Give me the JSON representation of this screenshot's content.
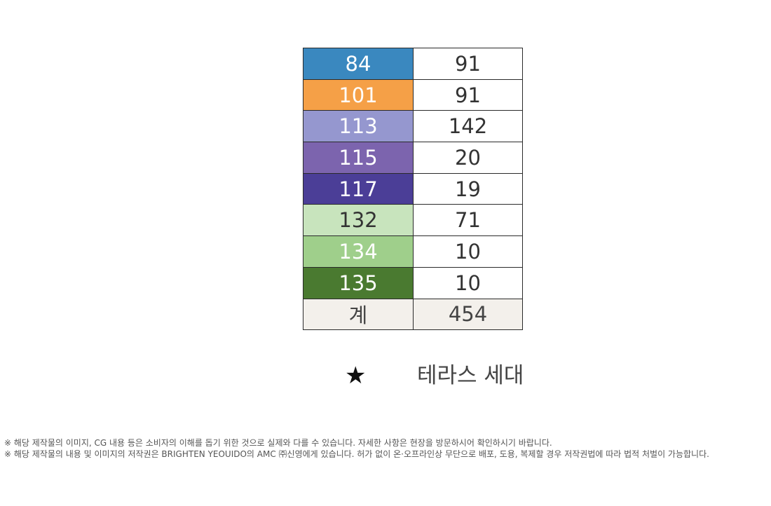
{
  "table": {
    "rows": [
      {
        "type": "84",
        "count": "91",
        "bg": "#3a88bf",
        "fg": "#ffffff"
      },
      {
        "type": "101",
        "count": "91",
        "bg": "#f5a047",
        "fg": "#ffffff"
      },
      {
        "type": "113",
        "count": "142",
        "bg": "#9597cf",
        "fg": "#ffffff"
      },
      {
        "type": "115",
        "count": "20",
        "bg": "#7c64ae",
        "fg": "#ffffff"
      },
      {
        "type": "117",
        "count": "19",
        "bg": "#4b3e97",
        "fg": "#ffffff"
      },
      {
        "type": "132",
        "count": "71",
        "bg": "#c8e4bd",
        "fg": "#333333"
      },
      {
        "type": "134",
        "count": "10",
        "bg": "#9fcf8b",
        "fg": "#ffffff"
      },
      {
        "type": "135",
        "count": "10",
        "bg": "#4a7a30",
        "fg": "#ffffff"
      }
    ],
    "total": {
      "label": "계",
      "value": "454"
    }
  },
  "legend": {
    "symbol": "★",
    "label": "테라스 세대"
  },
  "disclaimer": {
    "line1": "※ 해당 제작물의 이미지, CG 내용 등은 소비자의 이해를 돕기 위한 것으로 실제와 다를 수 있습니다. 자세한 사항은 현장을 방문하시어 확인하시기 바랍니다.",
    "line2": "※ 해당 제작물의 내용 및 이미지의 저작권은 BRIGHTEN YEOUIDO의 AMC ㈜신영에게 있습니다. 허가 없이 온·오프라인상 무단으로 배포, 도용, 복제할 경우 저작권법에 따라 법적 처벌이 가능합니다."
  }
}
